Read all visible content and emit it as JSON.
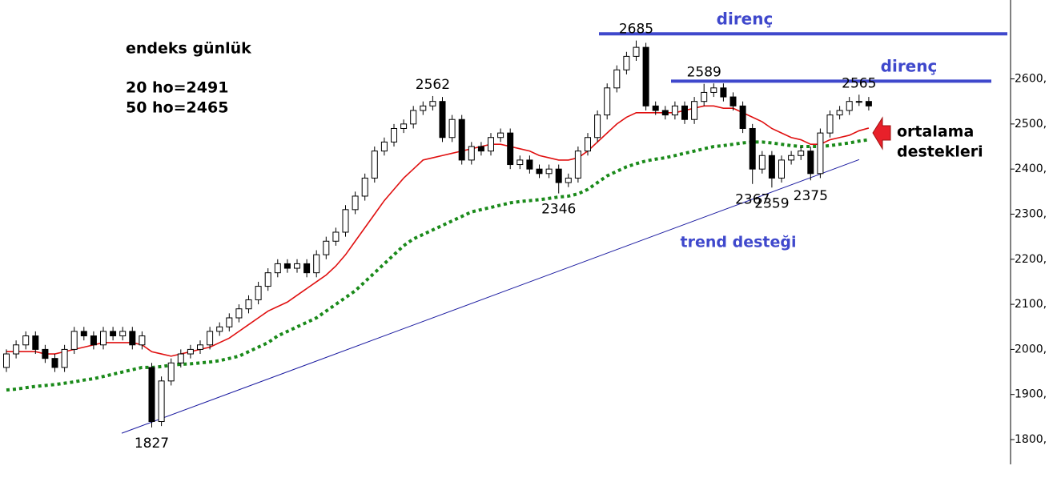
{
  "chart_data": {
    "type": "candlestick",
    "title": "endeks günlük",
    "notes": [
      "20 ho=2491",
      "50 ho=2465"
    ],
    "callout": [
      "ortalama",
      "destekleri"
    ],
    "up_color": "#ffffff",
    "down_color": "#000000",
    "candles": {
      "open": [
        1960,
        1990,
        2010,
        2030,
        2000,
        1980,
        1960,
        2000,
        2040,
        2030,
        2010,
        2040,
        2030,
        2040,
        2010,
        1960,
        1840,
        1930,
        1970,
        1990,
        2000,
        2010,
        2040,
        2050,
        2070,
        2090,
        2110,
        2140,
        2170,
        2190,
        2180,
        2190,
        2170,
        2210,
        2240,
        2260,
        2310,
        2340,
        2380,
        2440,
        2460,
        2490,
        2500,
        2530,
        2540,
        2550,
        2470,
        2510,
        2420,
        2450,
        2440,
        2470,
        2480,
        2410,
        2420,
        2400,
        2390,
        2400,
        2370,
        2380,
        2440,
        2470,
        2520,
        2580,
        2620,
        2650,
        2670,
        2540,
        2530,
        2520,
        2540,
        2510,
        2550,
        2570,
        2580,
        2560,
        2540,
        2490,
        2400,
        2430,
        2380,
        2420,
        2430,
        2440,
        2390,
        2480,
        2520,
        2530,
        2550,
        2550
      ],
      "high": [
        2000,
        2020,
        2040,
        2040,
        2010,
        1990,
        2010,
        2050,
        2050,
        2040,
        2050,
        2050,
        2050,
        2050,
        2040,
        1970,
        1940,
        1980,
        2000,
        2010,
        2020,
        2050,
        2060,
        2080,
        2100,
        2120,
        2150,
        2180,
        2200,
        2200,
        2200,
        2200,
        2220,
        2250,
        2270,
        2320,
        2350,
        2390,
        2450,
        2470,
        2500,
        2510,
        2540,
        2550,
        2562,
        2560,
        2520,
        2520,
        2460,
        2460,
        2480,
        2490,
        2490,
        2430,
        2430,
        2410,
        2410,
        2410,
        2390,
        2450,
        2480,
        2530,
        2590,
        2630,
        2660,
        2685,
        2680,
        2550,
        2540,
        2550,
        2550,
        2560,
        2589,
        2590,
        2590,
        2570,
        2550,
        2500,
        2440,
        2440,
        2430,
        2440,
        2450,
        2450,
        2490,
        2530,
        2540,
        2560,
        2565,
        2560
      ],
      "low": [
        1950,
        1980,
        2000,
        1990,
        1970,
        1950,
        1950,
        1990,
        2020,
        2000,
        2000,
        2020,
        2020,
        2000,
        2000,
        1827,
        1830,
        1920,
        1960,
        1980,
        1990,
        2000,
        2030,
        2040,
        2060,
        2080,
        2100,
        2130,
        2160,
        2170,
        2170,
        2160,
        2160,
        2200,
        2230,
        2250,
        2300,
        2330,
        2370,
        2430,
        2450,
        2480,
        2490,
        2520,
        2530,
        2460,
        2460,
        2410,
        2410,
        2430,
        2430,
        2460,
        2400,
        2400,
        2390,
        2380,
        2380,
        2346,
        2360,
        2370,
        2430,
        2460,
        2510,
        2570,
        2610,
        2640,
        2530,
        2520,
        2510,
        2510,
        2500,
        2500,
        2540,
        2560,
        2550,
        2530,
        2480,
        2367,
        2390,
        2359,
        2370,
        2410,
        2420,
        2375,
        2380,
        2470,
        2510,
        2520,
        2540,
        2530
      ],
      "close": [
        1990,
        2010,
        2030,
        2000,
        1980,
        1960,
        2000,
        2040,
        2030,
        2010,
        2040,
        2030,
        2040,
        2010,
        2030,
        1840,
        1930,
        1970,
        1990,
        2000,
        2010,
        2040,
        2050,
        2070,
        2090,
        2110,
        2140,
        2170,
        2190,
        2180,
        2190,
        2170,
        2210,
        2240,
        2260,
        2310,
        2340,
        2380,
        2440,
        2460,
        2490,
        2500,
        2530,
        2540,
        2550,
        2470,
        2510,
        2420,
        2450,
        2440,
        2470,
        2480,
        2410,
        2420,
        2400,
        2390,
        2400,
        2370,
        2380,
        2440,
        2470,
        2520,
        2580,
        2620,
        2650,
        2670,
        2540,
        2530,
        2520,
        2540,
        2510,
        2550,
        2570,
        2580,
        2560,
        2540,
        2490,
        2400,
        2430,
        2380,
        2420,
        2430,
        2440,
        2390,
        2480,
        2520,
        2530,
        2550,
        2550,
        2540
      ]
    },
    "series": [
      {
        "color": "#e01010",
        "style": "solid",
        "values": [
          1995,
          1995,
          1995,
          1995,
          1990,
          1990,
          1995,
          2000,
          2005,
          2010,
          2015,
          2015,
          2015,
          2015,
          2010,
          1995,
          1990,
          1985,
          1990,
          1995,
          2000,
          2005,
          2015,
          2025,
          2040,
          2055,
          2070,
          2085,
          2095,
          2105,
          2120,
          2135,
          2150,
          2165,
          2185,
          2210,
          2240,
          2270,
          2300,
          2330,
          2355,
          2380,
          2400,
          2420,
          2425,
          2430,
          2435,
          2440,
          2445,
          2450,
          2455,
          2455,
          2450,
          2445,
          2440,
          2430,
          2425,
          2420,
          2420,
          2425,
          2440,
          2460,
          2480,
          2500,
          2515,
          2525,
          2525,
          2525,
          2525,
          2525,
          2530,
          2535,
          2540,
          2540,
          2535,
          2535,
          2525,
          2515,
          2505,
          2490,
          2480,
          2470,
          2465,
          2455,
          2455,
          2465,
          2470,
          2475,
          2485,
          2491
        ]
      },
      {
        "color": "#1a8a1a",
        "style": "dotted",
        "values": [
          1910,
          1912,
          1915,
          1918,
          1920,
          1922,
          1925,
          1928,
          1932,
          1935,
          1940,
          1945,
          1950,
          1955,
          1960,
          1960,
          1962,
          1965,
          1967,
          1968,
          1970,
          1972,
          1975,
          1980,
          1985,
          1995,
          2005,
          2015,
          2030,
          2040,
          2050,
          2060,
          2070,
          2085,
          2100,
          2115,
          2130,
          2150,
          2170,
          2190,
          2210,
          2230,
          2245,
          2255,
          2265,
          2275,
          2285,
          2295,
          2305,
          2310,
          2315,
          2320,
          2325,
          2328,
          2330,
          2332,
          2335,
          2338,
          2340,
          2345,
          2355,
          2370,
          2385,
          2395,
          2405,
          2412,
          2418,
          2422,
          2425,
          2430,
          2435,
          2440,
          2445,
          2450,
          2452,
          2455,
          2458,
          2460,
          2460,
          2458,
          2455,
          2452,
          2450,
          2450,
          2450,
          2452,
          2455,
          2458,
          2462,
          2465
        ]
      }
    ],
    "resistance": [
      {
        "label": "direnç",
        "value": 2700,
        "color": "#3f48cc"
      },
      {
        "label": "direnç",
        "value": 2595,
        "color": "#3f48cc"
      }
    ],
    "trend_line": {
      "label": "trend desteği",
      "values": [
        1814,
        2421
      ],
      "color": "#1a1aa0"
    },
    "annotations": [
      2685,
      2589,
      2565,
      2562,
      2346,
      2367,
      2359,
      2375,
      1827
    ],
    "ylim": [
      1745,
      2775
    ],
    "yticks": [
      {
        "value": 1800,
        "label": "1800,"
      },
      {
        "value": 1900,
        "label": "1900,"
      },
      {
        "value": 2000,
        "label": "2000,"
      },
      {
        "value": 2100,
        "label": "2100,"
      },
      {
        "value": 2200,
        "label": "2200,"
      },
      {
        "value": 2300,
        "label": "2300,"
      },
      {
        "value": 2400,
        "label": "2400,"
      },
      {
        "value": 2500,
        "label": "2500,"
      },
      {
        "value": 2600,
        "label": "2600,"
      },
      {
        "value": {
          "v": 0
        },
        "label": ""
      }
    ]
  }
}
